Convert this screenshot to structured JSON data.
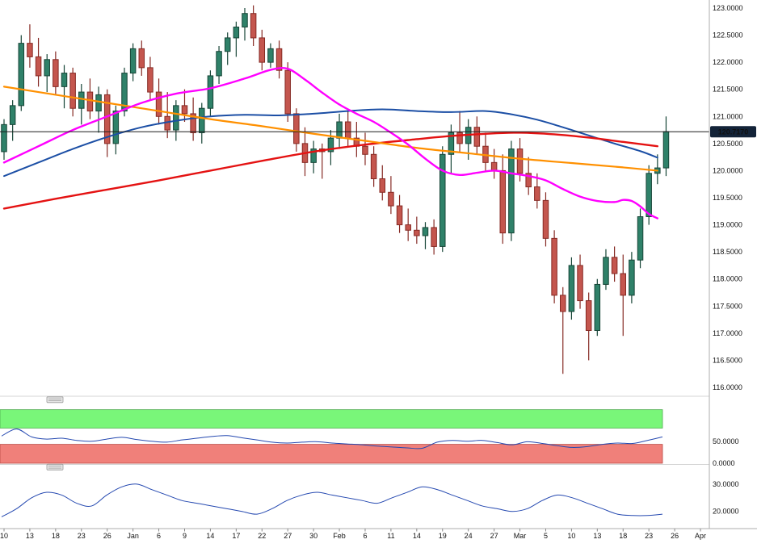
{
  "chart_data": {
    "type": "candlestick",
    "title": "",
    "current_price": "120.7170",
    "price_line_value": 120.717,
    "price_axis_labels": [
      "123.0000",
      "122.5000",
      "122.0000",
      "121.5000",
      "121.0000",
      "120.5000",
      "120.0000",
      "119.5000",
      "119.0000",
      "118.5000",
      "118.0000",
      "117.5000",
      "117.0000",
      "116.5000",
      "116.0000"
    ],
    "price_axis_range": [
      116.0,
      123.0
    ],
    "x_tick_labels": [
      "10",
      "13",
      "18",
      "23",
      "26",
      "Jan",
      "6",
      "9",
      "14",
      "17",
      "22",
      "27",
      "30",
      "Feb",
      "6",
      "11",
      "14",
      "19",
      "24",
      "27",
      "Mar",
      "5",
      "10",
      "13",
      "18",
      "23",
      "26",
      "Apr"
    ],
    "candles": [
      [
        120.35,
        120.95,
        120.2,
        120.85
      ],
      [
        120.85,
        121.3,
        120.55,
        121.2
      ],
      [
        121.2,
        122.5,
        121.1,
        122.35
      ],
      [
        122.35,
        122.7,
        121.9,
        122.1
      ],
      [
        122.1,
        122.45,
        121.55,
        121.75
      ],
      [
        121.75,
        122.15,
        121.45,
        122.05
      ],
      [
        122.05,
        122.2,
        121.4,
        121.55
      ],
      [
        121.55,
        121.95,
        121.15,
        121.8
      ],
      [
        121.8,
        121.9,
        121.0,
        121.15
      ],
      [
        121.15,
        121.6,
        120.85,
        121.45
      ],
      [
        121.45,
        121.7,
        120.95,
        121.1
      ],
      [
        121.1,
        121.55,
        120.7,
        121.4
      ],
      [
        121.4,
        121.5,
        120.25,
        120.5
      ],
      [
        120.5,
        121.2,
        120.3,
        121.1
      ],
      [
        121.1,
        121.9,
        121.0,
        121.8
      ],
      [
        121.8,
        122.35,
        121.65,
        122.25
      ],
      [
        122.25,
        122.4,
        121.75,
        121.9
      ],
      [
        121.9,
        122.1,
        121.3,
        121.45
      ],
      [
        121.45,
        121.7,
        120.85,
        121.0
      ],
      [
        121.0,
        121.45,
        120.6,
        120.75
      ],
      [
        120.75,
        121.3,
        120.55,
        121.2
      ],
      [
        121.2,
        121.5,
        120.9,
        121.05
      ],
      [
        121.05,
        121.35,
        120.55,
        120.7
      ],
      [
        120.7,
        121.25,
        120.5,
        121.15
      ],
      [
        121.15,
        121.85,
        121.0,
        121.75
      ],
      [
        121.75,
        122.3,
        121.6,
        122.2
      ],
      [
        122.2,
        122.55,
        121.95,
        122.45
      ],
      [
        122.45,
        122.75,
        122.1,
        122.65
      ],
      [
        122.65,
        123.0,
        122.4,
        122.9
      ],
      [
        122.9,
        123.05,
        122.3,
        122.45
      ],
      [
        122.45,
        122.6,
        121.85,
        122.0
      ],
      [
        122.0,
        122.35,
        121.9,
        122.25
      ],
      [
        122.25,
        122.4,
        121.7,
        121.85
      ],
      [
        121.85,
        122.0,
        120.9,
        121.05
      ],
      [
        121.05,
        121.15,
        120.35,
        120.5
      ],
      [
        120.5,
        120.8,
        119.9,
        120.15
      ],
      [
        120.15,
        120.55,
        119.95,
        120.4
      ],
      [
        120.4,
        120.5,
        119.85,
        120.35
      ],
      [
        120.35,
        120.75,
        120.1,
        120.6
      ],
      [
        120.6,
        121.05,
        120.4,
        120.9
      ],
      [
        120.9,
        121.1,
        120.45,
        120.6
      ],
      [
        120.6,
        120.9,
        120.25,
        120.45
      ],
      [
        120.45,
        120.7,
        120.1,
        120.3
      ],
      [
        120.3,
        120.45,
        119.7,
        119.85
      ],
      [
        119.85,
        120.1,
        119.45,
        119.6
      ],
      [
        119.6,
        119.9,
        119.2,
        119.35
      ],
      [
        119.35,
        119.55,
        118.85,
        119.0
      ],
      [
        119.0,
        119.3,
        118.7,
        118.9
      ],
      [
        118.9,
        119.15,
        118.65,
        118.8
      ],
      [
        118.8,
        119.05,
        118.55,
        118.95
      ],
      [
        118.95,
        119.1,
        118.45,
        118.6
      ],
      [
        118.6,
        120.45,
        118.5,
        120.3
      ],
      [
        120.3,
        120.85,
        119.95,
        120.7
      ],
      [
        120.7,
        121.1,
        120.35,
        120.5
      ],
      [
        120.5,
        120.95,
        120.2,
        120.8
      ],
      [
        120.8,
        121.0,
        120.3,
        120.45
      ],
      [
        120.45,
        120.7,
        120.0,
        120.15
      ],
      [
        120.15,
        120.4,
        119.85,
        120.0
      ],
      [
        120.0,
        120.3,
        118.65,
        118.85
      ],
      [
        118.85,
        120.55,
        118.7,
        120.4
      ],
      [
        120.4,
        120.6,
        119.8,
        119.95
      ],
      [
        119.95,
        120.25,
        119.55,
        119.7
      ],
      [
        119.7,
        119.95,
        119.3,
        119.45
      ],
      [
        119.45,
        119.6,
        118.6,
        118.75
      ],
      [
        118.75,
        118.9,
        117.55,
        117.7
      ],
      [
        117.7,
        117.85,
        116.25,
        117.4
      ],
      [
        117.4,
        118.4,
        117.25,
        118.25
      ],
      [
        118.25,
        118.45,
        117.45,
        117.6
      ],
      [
        117.6,
        117.75,
        116.5,
        117.05
      ],
      [
        117.05,
        118.0,
        116.95,
        117.9
      ],
      [
        117.9,
        118.55,
        117.8,
        118.4
      ],
      [
        118.4,
        118.6,
        117.95,
        118.1
      ],
      [
        118.1,
        118.45,
        116.95,
        117.7
      ],
      [
        117.7,
        118.5,
        117.55,
        118.35
      ],
      [
        118.35,
        119.3,
        118.2,
        119.15
      ],
      [
        119.15,
        120.1,
        119.0,
        119.95
      ],
      [
        119.95,
        120.3,
        119.75,
        120.05
      ],
      [
        120.05,
        121.0,
        119.9,
        120.72
      ]
    ],
    "ma": [
      {
        "name": "ma-line-blue",
        "color": "#1c4fa5",
        "width": 2.0,
        "points": [
          [
            0,
            119.9
          ],
          [
            4,
            120.15
          ],
          [
            8,
            120.4
          ],
          [
            12,
            120.62
          ],
          [
            16,
            120.8
          ],
          [
            20,
            120.92
          ],
          [
            24,
            121.0
          ],
          [
            28,
            121.03
          ],
          [
            32,
            121.02
          ],
          [
            36,
            121.05
          ],
          [
            40,
            121.1
          ],
          [
            44,
            121.13
          ],
          [
            48,
            121.1
          ],
          [
            52,
            121.08
          ],
          [
            56,
            121.1
          ],
          [
            59,
            121.04
          ],
          [
            62,
            120.94
          ],
          [
            65,
            120.8
          ],
          [
            68,
            120.65
          ],
          [
            71,
            120.5
          ],
          [
            74,
            120.36
          ],
          [
            76,
            120.24
          ]
        ]
      },
      {
        "name": "ma-line-red",
        "color": "#e41212",
        "width": 2.4,
        "points": [
          [
            0,
            119.3
          ],
          [
            6,
            119.48
          ],
          [
            12,
            119.65
          ],
          [
            18,
            119.82
          ],
          [
            24,
            120.0
          ],
          [
            30,
            120.18
          ],
          [
            36,
            120.35
          ],
          [
            42,
            120.48
          ],
          [
            48,
            120.58
          ],
          [
            52,
            120.64
          ],
          [
            56,
            120.68
          ],
          [
            60,
            120.7
          ],
          [
            64,
            120.67
          ],
          [
            68,
            120.61
          ],
          [
            72,
            120.53
          ],
          [
            76,
            120.45
          ]
        ]
      },
      {
        "name": "ma-line-orange",
        "color": "#ff9000",
        "width": 2.2,
        "points": [
          [
            0,
            121.55
          ],
          [
            6,
            121.4
          ],
          [
            12,
            121.25
          ],
          [
            18,
            121.1
          ],
          [
            24,
            120.95
          ],
          [
            30,
            120.82
          ],
          [
            36,
            120.68
          ],
          [
            42,
            120.55
          ],
          [
            48,
            120.42
          ],
          [
            54,
            120.32
          ],
          [
            60,
            120.22
          ],
          [
            66,
            120.14
          ],
          [
            72,
            120.06
          ],
          [
            76,
            120.0
          ]
        ]
      },
      {
        "name": "ma-line-magenta",
        "color": "#ff00ff",
        "width": 2.4,
        "points": [
          [
            0,
            120.15
          ],
          [
            4,
            120.45
          ],
          [
            8,
            120.75
          ],
          [
            12,
            121.0
          ],
          [
            16,
            121.25
          ],
          [
            20,
            121.42
          ],
          [
            24,
            121.52
          ],
          [
            28,
            121.7
          ],
          [
            31,
            121.86
          ],
          [
            33,
            121.88
          ],
          [
            35,
            121.68
          ],
          [
            37,
            121.44
          ],
          [
            39,
            121.22
          ],
          [
            41,
            121.05
          ],
          [
            43,
            120.9
          ],
          [
            45,
            120.7
          ],
          [
            47,
            120.48
          ],
          [
            49,
            120.22
          ],
          [
            51,
            120.0
          ],
          [
            53,
            119.92
          ],
          [
            55,
            119.96
          ],
          [
            57,
            120.0
          ],
          [
            59,
            119.95
          ],
          [
            61,
            119.9
          ],
          [
            63,
            119.82
          ],
          [
            65,
            119.66
          ],
          [
            67,
            119.52
          ],
          [
            69,
            119.44
          ],
          [
            71,
            119.42
          ],
          [
            72,
            119.46
          ],
          [
            73,
            119.44
          ],
          [
            74,
            119.34
          ],
          [
            75,
            119.2
          ],
          [
            76,
            119.12
          ]
        ]
      }
    ],
    "rsi_panel": {
      "range": [
        0,
        125
      ],
      "green_band": [
        80,
        122
      ],
      "red_band": [
        0,
        43
      ],
      "axis_labels": [
        {
          "v": 50,
          "t": "50.0000"
        },
        {
          "v": 0,
          "t": "0.0000"
        }
      ],
      "values": [
        62,
        78,
        60,
        55,
        57,
        52,
        50,
        55,
        59,
        54,
        50,
        48,
        53,
        57,
        61,
        63,
        58,
        53,
        48,
        46,
        48,
        49,
        46,
        44,
        42,
        39,
        37,
        35,
        34,
        48,
        52,
        50,
        52,
        47,
        42,
        49,
        45,
        40,
        36,
        38,
        43,
        46,
        45,
        52,
        60
      ]
    },
    "lower_panel": {
      "range": [
        14,
        35
      ],
      "axis_labels": [
        {
          "v": 30,
          "t": "30.0000"
        },
        {
          "v": 20,
          "t": "20.0000"
        }
      ],
      "values": [
        18,
        21,
        25,
        27,
        26,
        23,
        22,
        26,
        29,
        30,
        28,
        26,
        24,
        23,
        22,
        21,
        20,
        19,
        21,
        24,
        26,
        27,
        26,
        25,
        24,
        23,
        25,
        27,
        29,
        28,
        26,
        24,
        22,
        21,
        20,
        21,
        24,
        26,
        25,
        23,
        21,
        19,
        18.5,
        18.5,
        19
      ]
    },
    "colors": {
      "bull_fill": "#2f8169",
      "bull_stroke": "#174537",
      "bear_fill": "#c4564e",
      "bear_stroke": "#862a24",
      "price_line": "#1a1a1a",
      "badge_bg": "#132338",
      "badge_text": "#ffffff",
      "axis_line": "#aeaeae",
      "axis_text": "#111111",
      "green_band_fill": "#79f679",
      "green_band_stroke": "#4fae4f",
      "red_band_fill": "#f0807a",
      "red_band_stroke": "#bb4a44",
      "indicator_line": "#2448b0",
      "separator": "#d4d4d4",
      "handle_fill": "#e6e6e6",
      "handle_stroke": "#9a9a9a"
    }
  }
}
